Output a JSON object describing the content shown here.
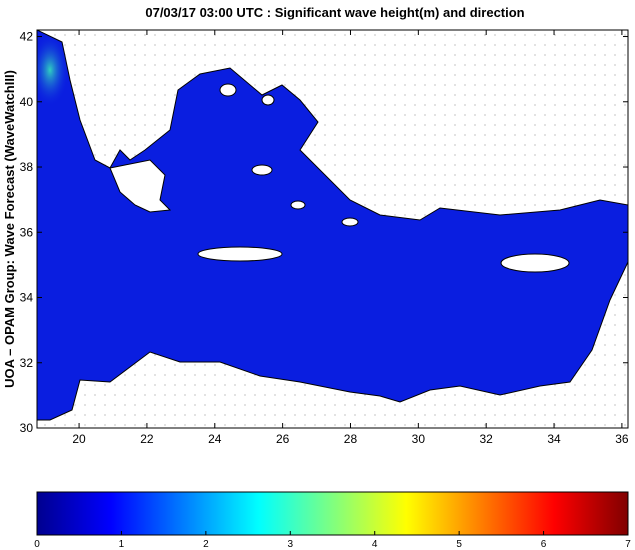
{
  "map": {
    "title": "07/03/17 03:00 UTC : Significant wave height(m) and direction",
    "ylabel": "UOA – OPAM Group: Wave Forecast (WaveWatchIII)",
    "xlim": [
      18.76,
      36.18
    ],
    "ylim": [
      30,
      42.2
    ],
    "xticks": [
      20,
      22,
      24,
      26,
      28,
      30,
      32,
      34,
      36
    ],
    "yticks": [
      30,
      32,
      34,
      36,
      38,
      40,
      42
    ],
    "colorbar": {
      "lim": [
        0,
        7
      ],
      "ticks": [
        0,
        1,
        2,
        3,
        4,
        5,
        6,
        7
      ]
    }
  }
}
